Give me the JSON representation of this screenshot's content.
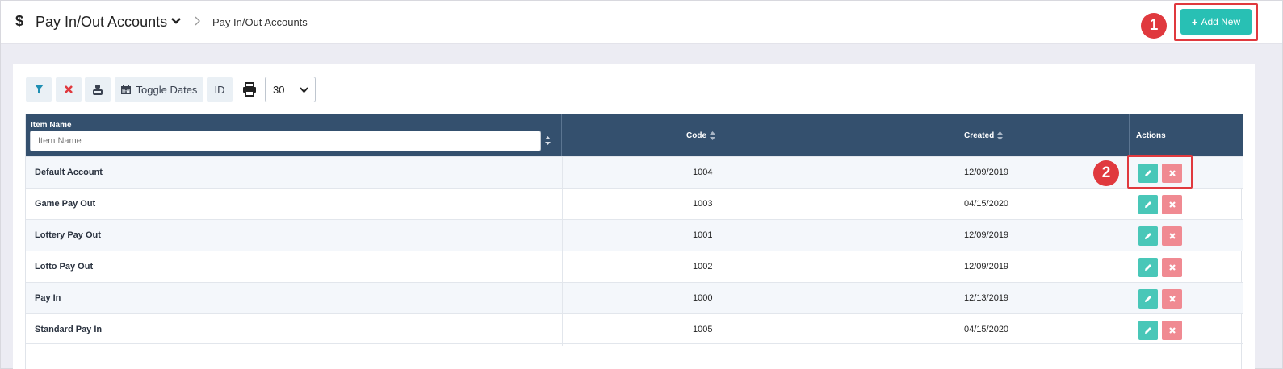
{
  "header": {
    "title": "Pay In/Out Accounts",
    "breadcrumb": "Pay In/Out Accounts",
    "add_new_label": "Add New",
    "callout_1": "1",
    "callout_2": "2"
  },
  "toolbar": {
    "toggle_dates_label": "Toggle Dates",
    "id_label": "ID",
    "page_size": "30"
  },
  "table": {
    "columns": {
      "name": "Item Name",
      "code": "Code",
      "created": "Created",
      "actions": "Actions"
    },
    "name_filter_placeholder": "Item Name",
    "rows": [
      {
        "name": "Default Account",
        "code": "1004",
        "created": "12/09/2019"
      },
      {
        "name": "Game Pay Out",
        "code": "1003",
        "created": "04/15/2020"
      },
      {
        "name": "Lottery Pay Out",
        "code": "1001",
        "created": "12/09/2019"
      },
      {
        "name": "Lotto Pay Out",
        "code": "1002",
        "created": "12/09/2019"
      },
      {
        "name": "Pay In",
        "code": "1000",
        "created": "12/13/2019"
      },
      {
        "name": "Standard Pay In",
        "code": "1005",
        "created": "04/15/2020"
      }
    ]
  },
  "colors": {
    "accent": "#28c0b4",
    "header_bg": "#34506e",
    "delete": "#f08a92",
    "highlight": "#e0393e"
  },
  "icons": [
    "dollar-icon",
    "chevron-down-icon",
    "chevron-right-icon",
    "plus-icon",
    "filter-icon",
    "clear-icon",
    "user-icon",
    "calendar-icon",
    "print-icon",
    "sort-icon",
    "edit-icon",
    "delete-icon"
  ]
}
